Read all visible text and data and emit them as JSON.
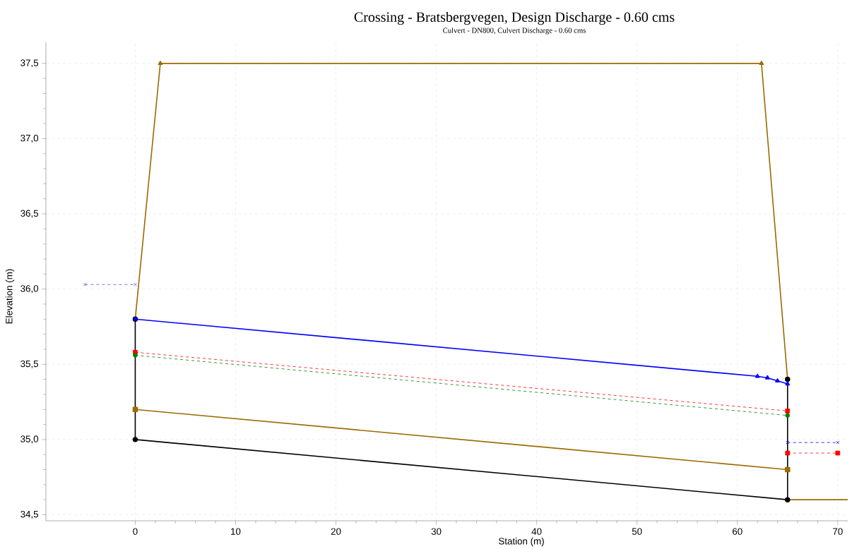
{
  "chart_data": {
    "type": "line",
    "title": "Crossing - Bratsbergvegen, Design Discharge - 0.60 cms",
    "subtitle": "Culvert - DN800, Culvert Discharge - 0.60 cms",
    "xlabel": "Station (m)",
    "ylabel": "Elevation (m)",
    "xlim": [
      -8.9,
      71
    ],
    "ylim": [
      34.46,
      37.64
    ],
    "xticks": [
      0,
      10,
      20,
      30,
      40,
      50,
      60,
      70
    ],
    "yticks": [
      {
        "value": 34.5,
        "label": "34,5"
      },
      {
        "value": 35.0,
        "label": "35,0"
      },
      {
        "value": 35.5,
        "label": "35,5"
      },
      {
        "value": 36.0,
        "label": "36,0"
      },
      {
        "value": 36.5,
        "label": "36,5"
      },
      {
        "value": 37.0,
        "label": "37,0"
      },
      {
        "value": 37.5,
        "label": "37,5"
      }
    ],
    "grid": true,
    "series": [
      {
        "color": "#9c6a00",
        "x": [
          0,
          2.5,
          62.4,
          65
        ],
        "values": [
          35.8,
          37.5,
          37.5,
          35.4
        ],
        "marker": "triangle",
        "line_style": "solid"
      },
      {
        "color": "#9c6a00",
        "x": [
          65,
          71
        ],
        "values": [
          34.6,
          34.6
        ],
        "marker": "none",
        "line_style": "solid"
      },
      {
        "color": "#9c6a00",
        "x": [
          0,
          65
        ],
        "values": [
          35.2,
          34.8
        ],
        "marker": "square",
        "line_style": "solid"
      },
      {
        "color": "#000000",
        "x": [
          0,
          0,
          65,
          65
        ],
        "values": [
          35.8,
          35.0,
          34.6,
          35.4
        ],
        "marker": "circle",
        "line_style": "solid"
      },
      {
        "color": "#ff0000",
        "x": [
          0,
          65
        ],
        "values": [
          35.58,
          35.19
        ],
        "marker": "square",
        "line_style": "dashed"
      },
      {
        "color": "#008000",
        "x": [
          0,
          65
        ],
        "values": [
          35.56,
          35.16
        ],
        "marker": "circle",
        "line_style": "dashed"
      },
      {
        "color": "#0000ff",
        "x": [
          0,
          62,
          63,
          64,
          65
        ],
        "values": [
          35.8,
          35.42,
          35.41,
          35.39,
          35.37
        ],
        "marker": "triangle",
        "line_style": "solid"
      },
      {
        "color": "#5050ff",
        "x": [
          -5,
          0
        ],
        "values": [
          36.03,
          36.03
        ],
        "marker": "cross",
        "line_style": "dashed"
      },
      {
        "color": "#0000ff",
        "x": [
          65,
          70
        ],
        "values": [
          34.98,
          34.98
        ],
        "marker": "cross",
        "line_style": "dashed"
      },
      {
        "color": "#ff0000",
        "x": [
          65,
          70
        ],
        "values": [
          34.91,
          34.91
        ],
        "marker": "square",
        "line_style": "dashed"
      }
    ]
  }
}
